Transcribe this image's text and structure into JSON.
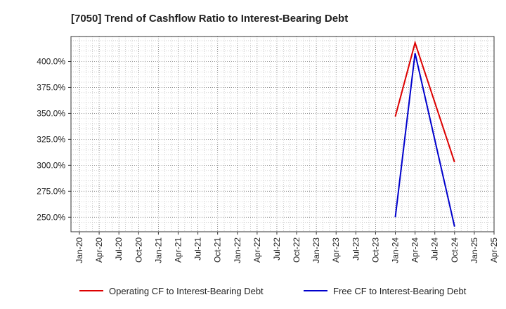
{
  "chart_data": {
    "type": "line",
    "title": "[7050]  Trend of Cashflow Ratio to Interest-Bearing Debt",
    "xlabel": "",
    "ylabel": "",
    "x_ticks": [
      "Jan-20",
      "Apr-20",
      "Jul-20",
      "Oct-20",
      "Jan-21",
      "Apr-21",
      "Jul-21",
      "Oct-21",
      "Jan-22",
      "Apr-22",
      "Jul-22",
      "Oct-22",
      "Jan-23",
      "Apr-23",
      "Jul-23",
      "Oct-23",
      "Jan-24",
      "Apr-24",
      "Jul-24",
      "Oct-24",
      "Jan-25",
      "Apr-25"
    ],
    "y_ticks": [
      250,
      275,
      300,
      325,
      350,
      375,
      400
    ],
    "y_tick_labels": [
      "250.0%",
      "275.0%",
      "300.0%",
      "325.0%",
      "350.0%",
      "375.0%",
      "400.0%"
    ],
    "ylim": [
      236,
      424
    ],
    "grid": true,
    "legend_position": "bottom",
    "series": [
      {
        "name": "Operating CF to Interest-Bearing Debt",
        "color": "#dd0000",
        "x": [
          "Jan-24",
          "Apr-24",
          "Oct-24"
        ],
        "values": [
          347,
          418,
          303
        ]
      },
      {
        "name": "Free CF to Interest-Bearing Debt",
        "color": "#0000cc",
        "x": [
          "Jan-24",
          "Apr-24",
          "Oct-24"
        ],
        "values": [
          250,
          408,
          241
        ]
      }
    ]
  }
}
